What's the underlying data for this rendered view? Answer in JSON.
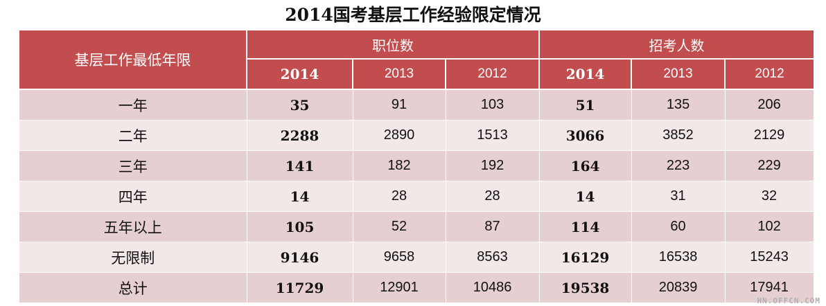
{
  "title": "2014国考基层工作经验限定情况",
  "table": {
    "row_header": "基层工作最低年限",
    "groups": [
      "职位数",
      "招考人数"
    ],
    "years": [
      "2014",
      "2013",
      "2012",
      "2014",
      "2013",
      "2012"
    ],
    "rows": [
      {
        "label": "一年",
        "values": [
          "35",
          "91",
          "103",
          "51",
          "135",
          "206"
        ]
      },
      {
        "label": "二年",
        "values": [
          "2288",
          "2890",
          "1513",
          "3066",
          "3852",
          "2129"
        ]
      },
      {
        "label": "三年",
        "values": [
          "141",
          "182",
          "192",
          "164",
          "223",
          "229"
        ]
      },
      {
        "label": "四年",
        "values": [
          "14",
          "28",
          "28",
          "14",
          "31",
          "32"
        ]
      },
      {
        "label": "五年以上",
        "values": [
          "105",
          "52",
          "87",
          "114",
          "60",
          "102"
        ]
      },
      {
        "label": "无限制",
        "values": [
          "9146",
          "9658",
          "8563",
          "16129",
          "16538",
          "15243"
        ]
      },
      {
        "label": "总计",
        "values": [
          "11729",
          "12901",
          "10486",
          "19538",
          "20839",
          "17941"
        ]
      }
    ]
  },
  "watermark": "HN.OFFCN.COM",
  "colors": {
    "header_bg": "#c24d4f",
    "row_dark": "#e6cfd0",
    "row_light": "#f3e8e8"
  }
}
